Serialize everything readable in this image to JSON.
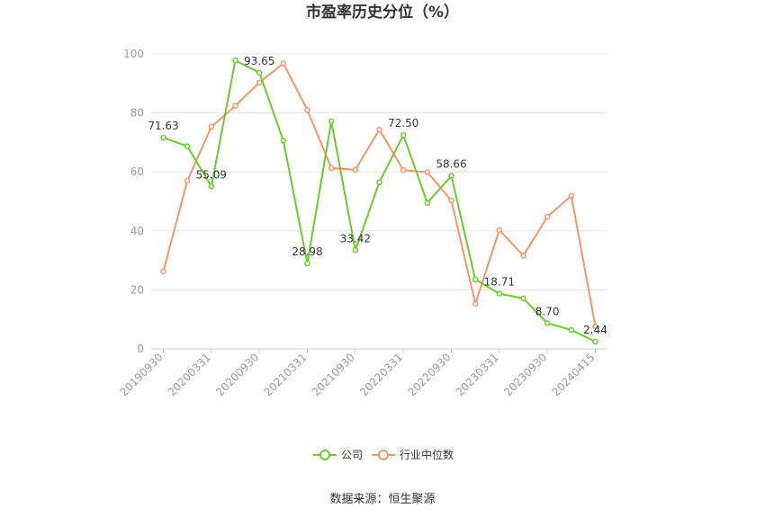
{
  "chart_data": {
    "type": "line",
    "title": "市盈率历史分位（%）",
    "source": "数据来源：恒生聚源",
    "x": [
      "20190930",
      "20191231",
      "20200331",
      "20200630",
      "20200930",
      "20201231",
      "20210331",
      "20210630",
      "20210930",
      "20211231",
      "20220331",
      "20220630",
      "20220930",
      "20221231",
      "20230331",
      "20230630",
      "20230930",
      "20231231",
      "20240415"
    ],
    "xticks": [
      "20190930",
      "20200331",
      "20200930",
      "20210331",
      "20210930",
      "20220331",
      "20220930",
      "20230331",
      "20230930",
      "20240415"
    ],
    "yticks": [
      "0",
      "20",
      "40",
      "60",
      "80",
      "100"
    ],
    "ylim": [
      0,
      100
    ],
    "grid": true,
    "legend_position": "bottom",
    "series": [
      {
        "name": "公司",
        "color": "#6cc930",
        "values": [
          71.63,
          68.7,
          55.09,
          97.8,
          93.65,
          70.6,
          28.98,
          77.2,
          33.42,
          56.5,
          72.5,
          49.5,
          58.66,
          23.5,
          18.71,
          17.1,
          8.7,
          6.4,
          2.44
        ],
        "labels": [
          "71.63",
          "",
          "55.09",
          "",
          "93.65",
          "",
          "28.98",
          "",
          "33.42",
          "",
          "72.50",
          "",
          "58.66",
          "",
          "18.71",
          "",
          "8.70",
          "",
          "2.44"
        ]
      },
      {
        "name": "行业中位数",
        "color": "#f0976a",
        "values": [
          26.3,
          57.0,
          75.3,
          82.4,
          90.3,
          96.8,
          81.0,
          61.3,
          60.7,
          74.4,
          60.6,
          59.9,
          50.3,
          15.3,
          40.3,
          31.6,
          44.8,
          51.9,
          7.6
        ],
        "labels": []
      }
    ]
  }
}
